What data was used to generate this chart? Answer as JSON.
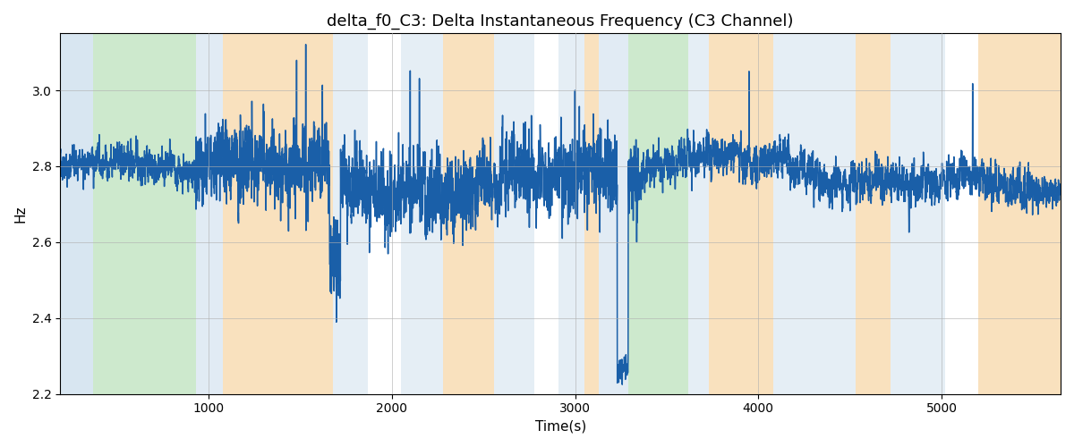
{
  "title": "delta_f0_C3: Delta Instantaneous Frequency (C3 Channel)",
  "xlabel": "Time(s)",
  "ylabel": "Hz",
  "ylim": [
    2.2,
    3.15
  ],
  "xlim": [
    190,
    5650
  ],
  "bg_bands": [
    {
      "xstart": 190,
      "xend": 370,
      "color": "#aac8e0",
      "alpha": 0.45
    },
    {
      "xstart": 370,
      "xend": 930,
      "color": "#90d090",
      "alpha": 0.45
    },
    {
      "xstart": 930,
      "xend": 1080,
      "color": "#aac8e0",
      "alpha": 0.35
    },
    {
      "xstart": 1080,
      "xend": 1680,
      "color": "#f5c98a",
      "alpha": 0.55
    },
    {
      "xstart": 1680,
      "xend": 1870,
      "color": "#aac8e0",
      "alpha": 0.3
    },
    {
      "xstart": 1870,
      "xend": 2050,
      "color": "#ffffff",
      "alpha": 0.0
    },
    {
      "xstart": 2050,
      "xend": 2280,
      "color": "#aac8e0",
      "alpha": 0.3
    },
    {
      "xstart": 2280,
      "xend": 2560,
      "color": "#f5c98a",
      "alpha": 0.55
    },
    {
      "xstart": 2560,
      "xend": 2780,
      "color": "#aac8e0",
      "alpha": 0.3
    },
    {
      "xstart": 2780,
      "xend": 2910,
      "color": "#ffffff",
      "alpha": 0.0
    },
    {
      "xstart": 2910,
      "xend": 3050,
      "color": "#aac8e0",
      "alpha": 0.3
    },
    {
      "xstart": 3050,
      "xend": 3130,
      "color": "#f5c98a",
      "alpha": 0.55
    },
    {
      "xstart": 3130,
      "xend": 3290,
      "color": "#aac8e0",
      "alpha": 0.35
    },
    {
      "xstart": 3290,
      "xend": 3620,
      "color": "#90d090",
      "alpha": 0.45
    },
    {
      "xstart": 3620,
      "xend": 3730,
      "color": "#aac8e0",
      "alpha": 0.3
    },
    {
      "xstart": 3730,
      "xend": 4080,
      "color": "#f5c98a",
      "alpha": 0.55
    },
    {
      "xstart": 4080,
      "xend": 4530,
      "color": "#aac8e0",
      "alpha": 0.3
    },
    {
      "xstart": 4530,
      "xend": 4720,
      "color": "#f5c98a",
      "alpha": 0.55
    },
    {
      "xstart": 4720,
      "xend": 5020,
      "color": "#aac8e0",
      "alpha": 0.3
    },
    {
      "xstart": 5020,
      "xend": 5200,
      "color": "#ffffff",
      "alpha": 0.0
    },
    {
      "xstart": 5200,
      "xend": 5650,
      "color": "#f5c98a",
      "alpha": 0.55
    }
  ],
  "line_color": "#1a5fa8",
  "line_width": 1.1,
  "grid_color": "#b0b0b0",
  "grid_alpha": 0.7,
  "title_fontsize": 13,
  "label_fontsize": 11,
  "tick_fontsize": 10,
  "seed": 42,
  "n_points": 5460,
  "x_start": 190,
  "x_end": 5650
}
